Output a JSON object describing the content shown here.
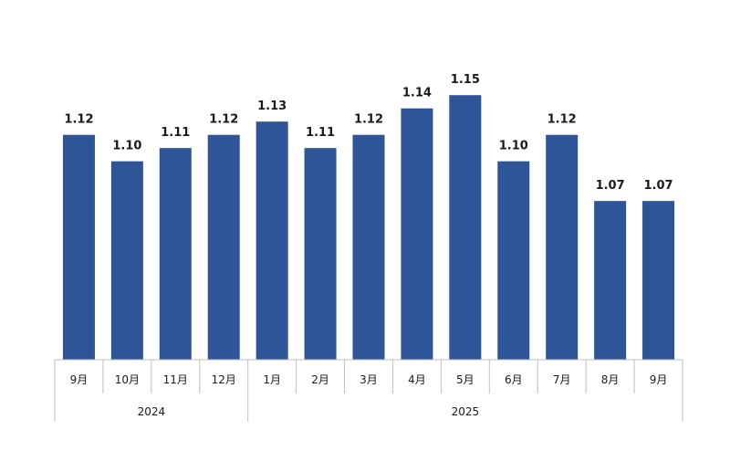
{
  "chart_data": {
    "type": "bar",
    "categories": [
      "9月",
      "10月",
      "11月",
      "12月",
      "1月",
      "2月",
      "3月",
      "4月",
      "5月",
      "6月",
      "7月",
      "8月",
      "9月"
    ],
    "values": [
      1.12,
      1.1,
      1.11,
      1.12,
      1.13,
      1.11,
      1.12,
      1.14,
      1.15,
      1.1,
      1.12,
      1.07,
      1.07
    ],
    "value_labels": [
      "1.12",
      "1.10",
      "1.11",
      "1.12",
      "1.13",
      "1.11",
      "1.12",
      "1.14",
      "1.15",
      "1.10",
      "1.12",
      "1.07",
      "1.07"
    ],
    "year_groups": [
      {
        "label": "2024",
        "start": 0,
        "count": 4
      },
      {
        "label": "2025",
        "start": 4,
        "count": 9
      }
    ],
    "ylim": [
      0.95,
      1.175
    ],
    "bar_color": "#2e5597",
    "grid": false,
    "title": "",
    "xlabel": "",
    "ylabel": ""
  }
}
